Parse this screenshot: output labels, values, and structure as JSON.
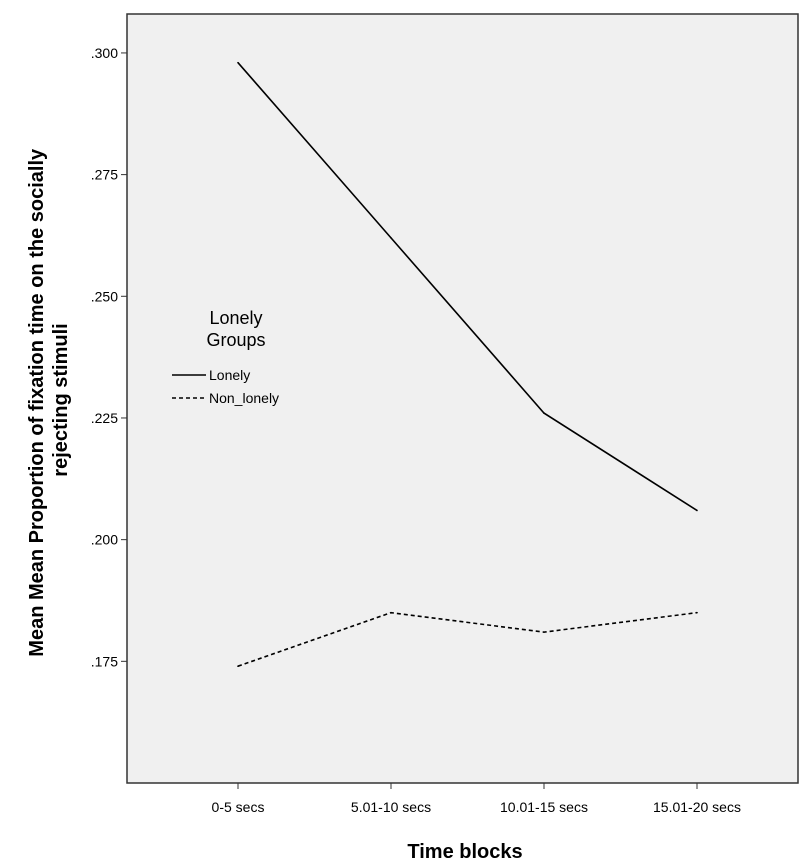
{
  "chart_data": {
    "type": "line",
    "title": "",
    "xlabel": "Time blocks",
    "ylabel_lines": [
      "Mean Mean Proportion of fixation time on the socially",
      "rejecting stimuli"
    ],
    "categories": [
      "0-5 secs",
      "5.01-10 secs",
      "10.01-15 secs",
      "15.01-20 secs"
    ],
    "y_ticks": [
      ".175",
      ".200",
      ".225",
      ".250",
      ".275",
      ".300"
    ],
    "ylim": [
      0.15,
      0.308
    ],
    "grid": false,
    "legend": {
      "title_lines": [
        "Lonely",
        "Groups"
      ],
      "placement": "middle-left"
    },
    "series": [
      {
        "name": "Lonely",
        "values": [
          0.298,
          0.262,
          0.226,
          0.206
        ],
        "line_style": "solid",
        "color": "#000000"
      },
      {
        "name": "Non_lonely",
        "values": [
          0.174,
          0.185,
          0.181,
          0.185
        ],
        "line_style": "dashed",
        "color": "#000000"
      }
    ],
    "colors": {
      "plot_background": "#f0f0f0",
      "axis": "#333333"
    }
  }
}
